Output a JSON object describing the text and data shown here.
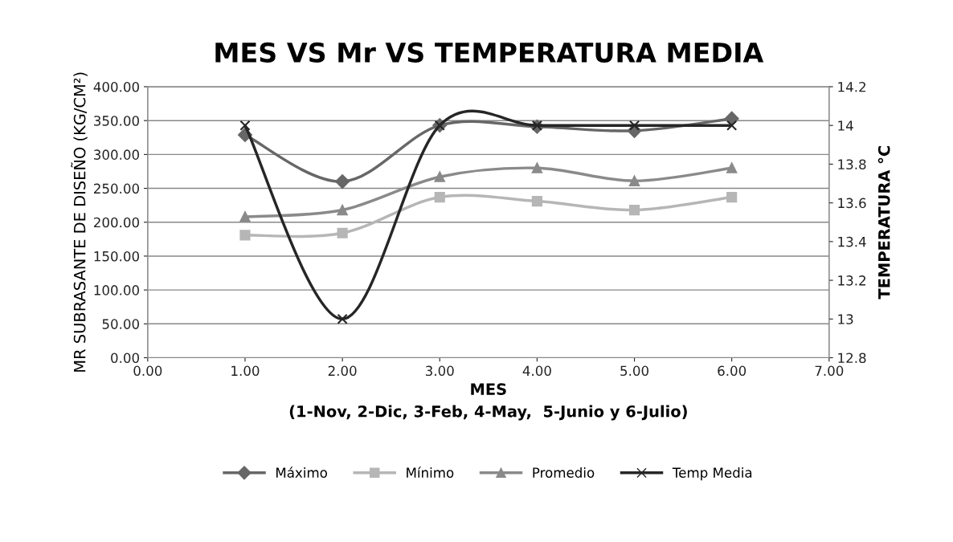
{
  "chart_data": {
    "type": "line",
    "title": "MES VS Mr VS TEMPERATURA MEDIA",
    "xlabel": "MES\n(1-Nov, 2-Dic, 3-Feb, 4-May,  5-Junio y 6-Julio)",
    "ylabel": "MR SUBRASANTE DE DISEÑO (KG/CM²)",
    "y2label": "TEMPERATURA °C",
    "x": [
      1,
      2,
      3,
      4,
      5,
      6
    ],
    "series": [
      {
        "name": "Máximo",
        "color": "#676767",
        "marker": "diamond",
        "values": [
          329,
          260,
          343,
          341,
          335,
          353
        ]
      },
      {
        "name": "Mínimo",
        "color": "#b6b6b6",
        "marker": "square",
        "values": [
          181,
          184,
          237,
          231,
          218,
          237
        ]
      },
      {
        "name": "Promedio",
        "color": "#8a8a8a",
        "marker": "triangle",
        "values": [
          208,
          218,
          267,
          280,
          261,
          280
        ]
      },
      {
        "name": "Temp Media",
        "color": "#262626",
        "marker": "cross",
        "axis": "y2",
        "values": [
          14,
          13,
          14,
          14,
          14,
          14
        ]
      }
    ],
    "xlim": [
      0,
      7
    ],
    "xticks": [
      {
        "value": 0,
        "label": "0.00"
      },
      {
        "value": 1,
        "label": "1.00"
      },
      {
        "value": 2,
        "label": "2.00"
      },
      {
        "value": 3,
        "label": "3.00"
      },
      {
        "value": 4,
        "label": "4.00"
      },
      {
        "value": 5,
        "label": "5.00"
      },
      {
        "value": 6,
        "label": "6.00"
      },
      {
        "value": 7,
        "label": "7.00"
      }
    ],
    "ylim": [
      0,
      400
    ],
    "yticks": [
      {
        "value": 0,
        "label": "0.00"
      },
      {
        "value": 50,
        "label": "50.00"
      },
      {
        "value": 100,
        "label": "100.00"
      },
      {
        "value": 150,
        "label": "150.00"
      },
      {
        "value": 200,
        "label": "200.00"
      },
      {
        "value": 250,
        "label": "250.00"
      },
      {
        "value": 300,
        "label": "300.00"
      },
      {
        "value": 350,
        "label": "350.00"
      },
      {
        "value": 400,
        "label": "400.00"
      }
    ],
    "y2lim": [
      12.8,
      14.2
    ],
    "y2ticks": [
      12.8,
      13,
      13.2,
      13.4,
      13.6,
      13.8,
      14,
      14.2
    ],
    "grid": "y",
    "legend": "bottom",
    "line_style": "solid"
  }
}
